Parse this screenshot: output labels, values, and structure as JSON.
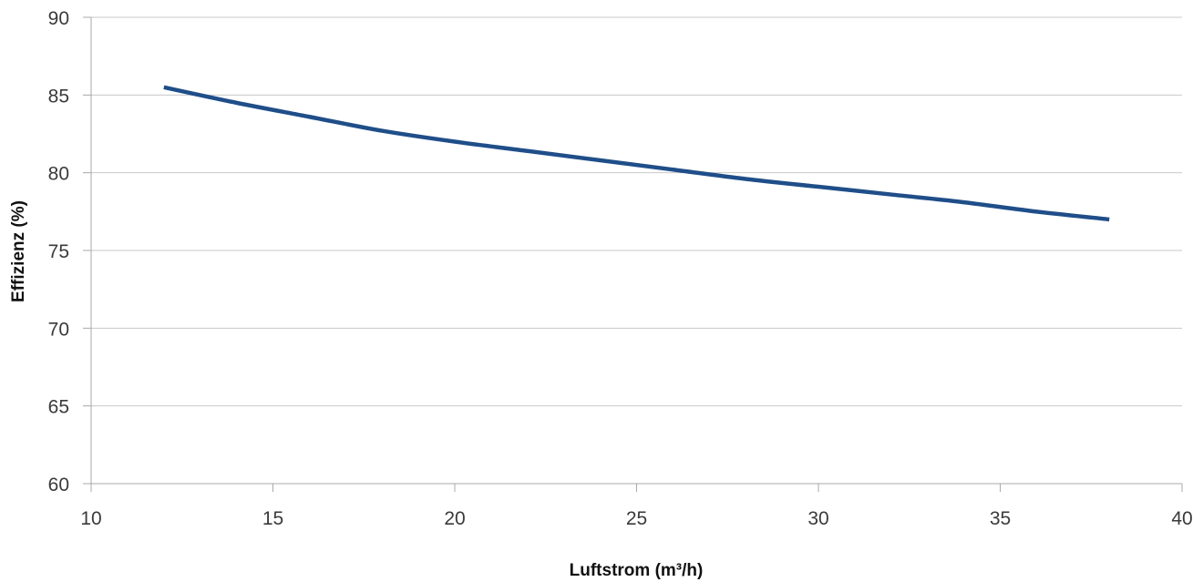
{
  "colors": {
    "series": "#1f4e89",
    "grid": "#c8c8c8",
    "axis": "#a8a8a8"
  },
  "chart_data": {
    "type": "line",
    "title": "",
    "xlabel": "Luftstrom (m³/h)",
    "ylabel": "Effizienz (%)",
    "xlim": [
      10,
      40
    ],
    "ylim": [
      60,
      90
    ],
    "x_ticks": [
      "10",
      "15",
      "20",
      "25",
      "30",
      "35",
      "40"
    ],
    "y_ticks": [
      "60",
      "65",
      "70",
      "75",
      "80",
      "85",
      "90"
    ],
    "grid": "horizontal",
    "legend": "none",
    "series": [
      {
        "x": [
          12,
          14,
          16,
          18,
          20,
          22,
          24,
          26,
          28,
          30,
          32,
          34,
          36,
          38
        ],
        "y": [
          85.5,
          84.5,
          83.6,
          82.7,
          82.0,
          81.4,
          80.8,
          80.2,
          79.6,
          79.1,
          78.6,
          78.1,
          77.5,
          77.0
        ]
      }
    ]
  }
}
